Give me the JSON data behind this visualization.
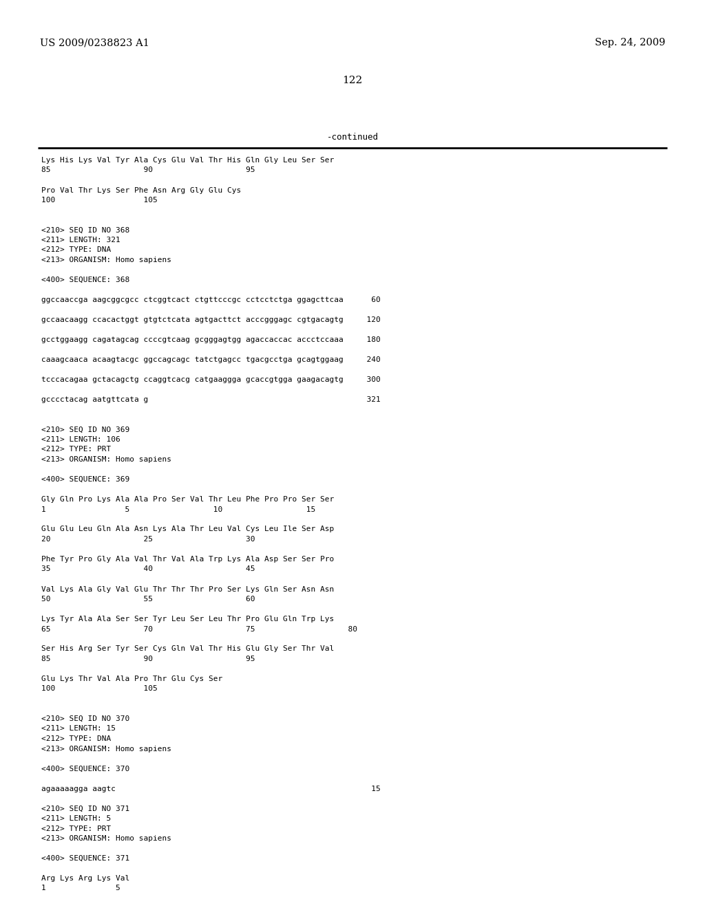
{
  "header_left": "US 2009/0238823 A1",
  "header_right": "Sep. 24, 2009",
  "page_number": "122",
  "continued_label": "-continued",
  "background_color": "#ffffff",
  "text_color": "#000000",
  "content": [
    "Lys His Lys Val Tyr Ala Cys Glu Val Thr His Gln Gly Leu Ser Ser",
    "85                    90                    95",
    "",
    "Pro Val Thr Lys Ser Phe Asn Arg Gly Glu Cys",
    "100                   105",
    "",
    "",
    "<210> SEQ ID NO 368",
    "<211> LENGTH: 321",
    "<212> TYPE: DNA",
    "<213> ORGANISM: Homo sapiens",
    "",
    "<400> SEQUENCE: 368",
    "",
    "ggccaaccga aagcggcgcc ctcggtcact ctgttcccgc cctcctctga ggagcttcaa      60",
    "",
    "gccaacaagg ccacactggt gtgtctcata agtgacttct acccgggagc cgtgacagtg     120",
    "",
    "gcctggaagg cagatagcag ccccgtcaag gcgggagtgg agaccaccac accctccaaa     180",
    "",
    "caaagcaaca acaagtacgc ggccagcagc tatctgagcc tgacgcctga gcagtggaag     240",
    "",
    "tcccacagaa gctacagctg ccaggtcacg catgaaggga gcaccgtgga gaagacagtg     300",
    "",
    "gcccctacag aatgttcata g                                               321",
    "",
    "",
    "<210> SEQ ID NO 369",
    "<211> LENGTH: 106",
    "<212> TYPE: PRT",
    "<213> ORGANISM: Homo sapiens",
    "",
    "<400> SEQUENCE: 369",
    "",
    "Gly Gln Pro Lys Ala Ala Pro Ser Val Thr Leu Phe Pro Pro Ser Ser",
    "1                 5                  10                  15",
    "",
    "Glu Glu Leu Gln Ala Asn Lys Ala Thr Leu Val Cys Leu Ile Ser Asp",
    "20                    25                    30",
    "",
    "Phe Tyr Pro Gly Ala Val Thr Val Ala Trp Lys Ala Asp Ser Ser Pro",
    "35                    40                    45",
    "",
    "Val Lys Ala Gly Val Glu Thr Thr Thr Pro Ser Lys Gln Ser Asn Asn",
    "50                    55                    60",
    "",
    "Lys Tyr Ala Ala Ser Ser Tyr Leu Ser Leu Thr Pro Glu Gln Trp Lys",
    "65                    70                    75                    80",
    "",
    "Ser His Arg Ser Tyr Ser Cys Gln Val Thr His Glu Gly Ser Thr Val",
    "85                    90                    95",
    "",
    "Glu Lys Thr Val Ala Pro Thr Glu Cys Ser",
    "100                   105",
    "",
    "",
    "<210> SEQ ID NO 370",
    "<211> LENGTH: 15",
    "<212> TYPE: DNA",
    "<213> ORGANISM: Homo sapiens",
    "",
    "<400> SEQUENCE: 370",
    "",
    "agaaaaagga aagtc                                                       15",
    "",
    "<210> SEQ ID NO 371",
    "<211> LENGTH: 5",
    "<212> TYPE: PRT",
    "<213> ORGANISM: Homo sapiens",
    "",
    "<400> SEQUENCE: 371",
    "",
    "Arg Lys Arg Lys Val",
    "1               5"
  ]
}
